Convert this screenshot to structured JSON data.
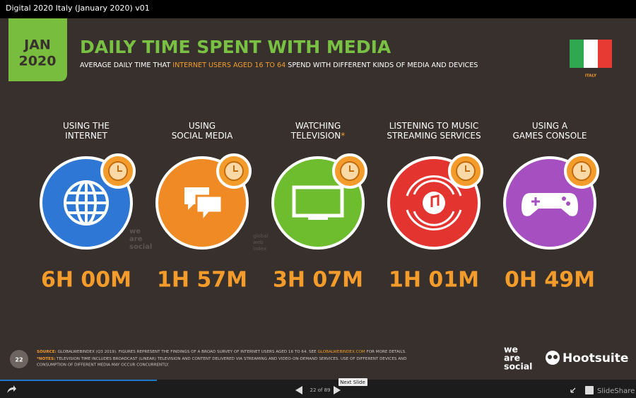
{
  "window": {
    "title": "Digital 2020 Italy (January 2020) v01"
  },
  "slide": {
    "date_month": "JAN",
    "date_year": "2020",
    "title": "DAILY TIME SPENT WITH MEDIA",
    "subtitle": [
      "AVERAGE DAILY TIME THAT ",
      "INTERNET USERS AGED 16 TO 64",
      " SPEND WITH DIFFERENT KINDS OF MEDIA AND DEVICES"
    ],
    "country": "ITALY",
    "items": [
      {
        "label": [
          "USING THE",
          "INTERNET"
        ],
        "value": "6H 00M"
      },
      {
        "label": [
          "USING",
          "SOCIAL MEDIA"
        ],
        "value": "1H 57M"
      },
      {
        "label": [
          "WATCHING",
          "TELEVISION"
        ],
        "mark": "*",
        "value": "3H 07M"
      },
      {
        "label": [
          "LISTENING TO MUSIC",
          "STREAMING SERVICES"
        ],
        "value": "1H 01M"
      },
      {
        "label": [
          "USING A",
          "GAMES CONSOLE"
        ],
        "value": "0H 49M"
      }
    ],
    "watermarks": [
      [
        "we",
        "are",
        "social"
      ],
      [
        "global",
        "web",
        "index"
      ]
    ],
    "page_number": "22",
    "source": [
      "SOURCE:",
      " GLOBALWEBINDEX (Q3 2019). FIGURES REPRESENT THE FINDINGS OF A BROAD SURVEY OF INTERNET USERS AGED 16 TO 64. SEE ",
      "GLOBALWEBINDEX.COM",
      " FOR MORE DETAILS."
    ],
    "notes": [
      "*NOTES:",
      " TELEVISION TIME INCLUDES BROADCAST (LINEAR) TELEVISION AND CONTENT DELIVERED VIA STREAMING AND VIDEO-ON-DEMAND SERVICES. USE OF DIFFERENT DEVICES AND",
      "CONSUMPTION OF DIFFERENT MEDIA MAY OCCUR CONCURRENTLY."
    ],
    "logo_left": [
      "we",
      "are",
      "social"
    ],
    "logo_right": "Hootsuite"
  },
  "player": {
    "page_indicator": "22 of 89",
    "tooltip": "Next Slide",
    "brand": "SlideShare"
  }
}
